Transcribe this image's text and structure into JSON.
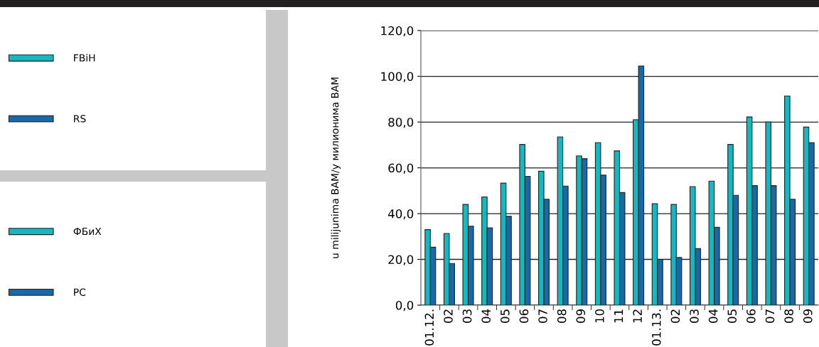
{
  "chart_data": {
    "type": "bar",
    "categories": [
      "01.12.",
      "02",
      "03",
      "04",
      "05",
      "06",
      "07",
      "08",
      "09",
      "10",
      "11",
      "12",
      "01.13.",
      "02",
      "03",
      "04",
      "05",
      "06",
      "07",
      "08",
      "09"
    ],
    "series": [
      {
        "name": "FBiH",
        "color": "#14b8c0",
        "values": [
          33.0,
          31.3,
          44.0,
          47.3,
          53.3,
          70.2,
          58.5,
          73.5,
          65.2,
          71.0,
          67.4,
          81.0,
          44.3,
          44.0,
          51.8,
          54.2,
          70.2,
          82.2,
          80.0,
          91.4,
          77.8
        ]
      },
      {
        "name": "RS",
        "color": "#1a68a4",
        "values": [
          25.3,
          18.2,
          34.5,
          33.8,
          38.8,
          56.3,
          46.3,
          52.0,
          64.0,
          56.8,
          49.2,
          104.5,
          20.0,
          20.8,
          24.7,
          34.0,
          48.0,
          52.2,
          52.2,
          46.3,
          71.0
        ]
      }
    ],
    "ylabel": "u milijunima BAM/у милионима BAM",
    "ylim": [
      0,
      120
    ],
    "yticks": [
      {
        "value": 0,
        "label": "0,0"
      },
      {
        "value": 20,
        "label": "20,0"
      },
      {
        "value": 40,
        "label": "40,0"
      },
      {
        "value": 60,
        "label": "60,0"
      },
      {
        "value": 80,
        "label": "80,0"
      },
      {
        "value": 100,
        "label": "100,0"
      },
      {
        "value": 120,
        "label": "120,0"
      }
    ],
    "grid": "y",
    "legend": "left",
    "annotations": [
      "ФБиХ",
      "РС"
    ]
  }
}
